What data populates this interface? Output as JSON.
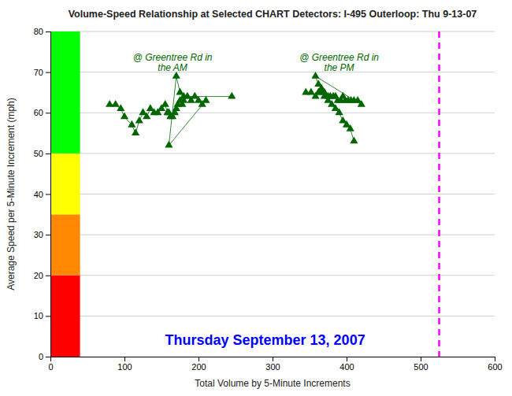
{
  "chart_data": {
    "type": "line",
    "title": "Volume-Speed Relationship at Selected CHART Detectors: I-495 Outerloop: Thu 9-13-07",
    "x_label": "Total Volume by 5-Minute Increments",
    "y_label": "Average Speed per 5-Minute Increment (mph)",
    "xlim": [
      0,
      600
    ],
    "ylim": [
      0,
      80
    ],
    "xticks": [
      0,
      100,
      200,
      300,
      400,
      500,
      600
    ],
    "yticks": [
      0,
      10,
      20,
      30,
      40,
      50,
      60,
      70,
      80
    ],
    "grid": "y",
    "bands": {
      "x": [
        0,
        40
      ],
      "ranges": [
        {
          "y": [
            0,
            20
          ],
          "color": "#FF0000"
        },
        {
          "y": [
            20,
            35
          ],
          "color": "#FF8800"
        },
        {
          "y": [
            35,
            50
          ],
          "color": "#FFFF00"
        },
        {
          "y": [
            50,
            80
          ],
          "color": "#00FF00"
        }
      ]
    },
    "reference_lines": [
      {
        "x": 525,
        "color": "#FF00FF",
        "line_style": "dashed"
      }
    ],
    "series": [
      {
        "color": "#006600",
        "marker": "triangle",
        "line_style": "solid",
        "x": [
          80,
          88,
          95,
          100,
          110,
          115,
          120,
          125,
          130,
          135,
          140,
          145,
          150,
          155,
          158,
          160,
          162,
          165,
          168,
          170,
          172,
          175,
          178,
          180,
          185,
          190,
          195,
          200,
          205,
          210,
          160,
          170,
          175,
          180,
          245
        ],
        "values": [
          62,
          62,
          61,
          59,
          57,
          55,
          58,
          60,
          59,
          61,
          60,
          60,
          61,
          62,
          60,
          60,
          59,
          59,
          60,
          61,
          62,
          63,
          62,
          63,
          64,
          63,
          64,
          63,
          62,
          63,
          52,
          69,
          65,
          64,
          64
        ]
      },
      {
        "color": "#006600",
        "marker": "triangle",
        "line_style": "solid",
        "x": [
          345,
          352,
          358,
          362,
          366,
          370,
          375,
          378,
          382,
          385,
          388,
          392,
          395,
          398,
          402,
          406,
          410,
          415,
          420,
          358,
          362,
          366,
          370,
          375,
          380,
          385,
          390,
          395,
          400,
          405,
          410
        ],
        "values": [
          65,
          65,
          64,
          65,
          65,
          65,
          64,
          64,
          64,
          64,
          63,
          63,
          64,
          63,
          63,
          63,
          63,
          63,
          62,
          69,
          67,
          66,
          64,
          63,
          62,
          61,
          60,
          58,
          57,
          56,
          53
        ]
      }
    ],
    "annotations": [
      {
        "text": "@ Greentree Rd in\n    the AM",
        "x": 165,
        "y": 75,
        "color": "#006600"
      },
      {
        "text": "@ Greentree Rd in\n    the PM",
        "x": 390,
        "y": 75,
        "color": "#006600"
      },
      {
        "text": "Thursday  September 13, 2007",
        "x": 290,
        "y": 6,
        "color": "#0000FF"
      }
    ]
  }
}
